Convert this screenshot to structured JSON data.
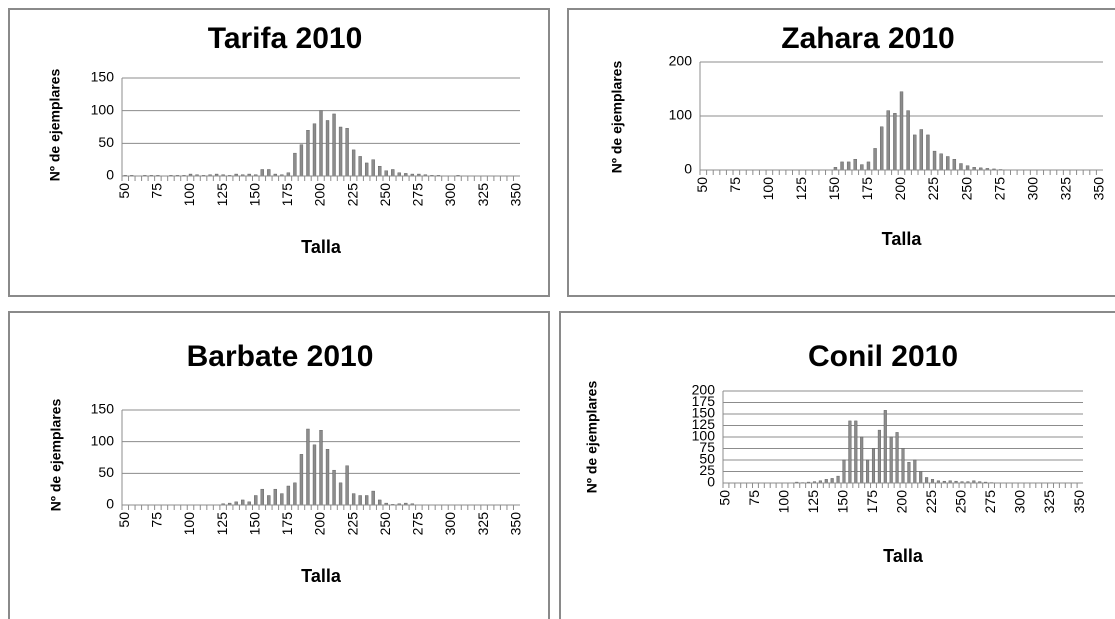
{
  "chart_data": [
    {
      "type": "bar",
      "title": "Tarifa 2010",
      "xlabel": "Talla",
      "ylabel": "Nº de ejemplares",
      "color": "#8c8c8c",
      "grid": true,
      "categories": [
        "50",
        null,
        null,
        null,
        null,
        "75",
        null,
        null,
        null,
        null,
        "100",
        null,
        null,
        null,
        null,
        "125",
        null,
        null,
        null,
        null,
        "150",
        null,
        null,
        null,
        null,
        "175",
        null,
        null,
        null,
        null,
        "200",
        null,
        null,
        null,
        null,
        "225",
        null,
        null,
        null,
        null,
        "250",
        null,
        null,
        null,
        null,
        "275",
        null,
        null,
        null,
        null,
        "300",
        null,
        null,
        null,
        null,
        "325",
        null,
        null,
        null,
        null,
        "350"
      ],
      "values": [
        1,
        1,
        0,
        1,
        1,
        1,
        0,
        1,
        1,
        1,
        3,
        2,
        1,
        2,
        3,
        2,
        1,
        3,
        2,
        3,
        2,
        10,
        10,
        3,
        2,
        5,
        35,
        48,
        70,
        80,
        100,
        85,
        95,
        75,
        73,
        40,
        30,
        20,
        25,
        15,
        8,
        10,
        5,
        4,
        3,
        3,
        2,
        1,
        1,
        0,
        0,
        1,
        0,
        0,
        0,
        0,
        0,
        0,
        0,
        0,
        0
      ],
      "ylim": [
        0,
        150
      ],
      "yticks": [
        0,
        50,
        100,
        150
      ]
    },
    {
      "type": "bar",
      "title": "Zahara 2010",
      "xlabel": "Talla",
      "ylabel": "Nº de ejemplares",
      "color": "#8c8c8c",
      "grid": true,
      "categories": [
        "50",
        null,
        null,
        null,
        null,
        "75",
        null,
        null,
        null,
        null,
        "100",
        null,
        null,
        null,
        null,
        "125",
        null,
        null,
        null,
        null,
        "150",
        null,
        null,
        null,
        null,
        "175",
        null,
        null,
        null,
        null,
        "200",
        null,
        null,
        null,
        null,
        "225",
        null,
        null,
        null,
        null,
        "250",
        null,
        null,
        null,
        null,
        "275",
        null,
        null,
        null,
        null,
        "300",
        null,
        null,
        null,
        null,
        "325",
        null,
        null,
        null,
        null,
        "350"
      ],
      "values": [
        0,
        0,
        0,
        0,
        0,
        0,
        0,
        0,
        0,
        0,
        0,
        0,
        0,
        0,
        0,
        0,
        0,
        0,
        0,
        0,
        5,
        15,
        15,
        20,
        10,
        15,
        40,
        80,
        110,
        105,
        145,
        110,
        65,
        75,
        65,
        35,
        30,
        25,
        20,
        12,
        8,
        5,
        4,
        3,
        2,
        1,
        0,
        0,
        0,
        0,
        0,
        0,
        0,
        0,
        0,
        0,
        0,
        0,
        0,
        0,
        0
      ],
      "ylim": [
        0,
        200
      ],
      "yticks": [
        0,
        100,
        200
      ]
    },
    {
      "type": "bar",
      "title": "Barbate 2010",
      "xlabel": "Talla",
      "ylabel": "Nº de ejemplares",
      "color": "#8c8c8c",
      "grid": true,
      "categories": [
        "50",
        null,
        null,
        null,
        null,
        "75",
        null,
        null,
        null,
        null,
        "100",
        null,
        null,
        null,
        null,
        "125",
        null,
        null,
        null,
        null,
        "150",
        null,
        null,
        null,
        null,
        "175",
        null,
        null,
        null,
        null,
        "200",
        null,
        null,
        null,
        null,
        "225",
        null,
        null,
        null,
        null,
        "250",
        null,
        null,
        null,
        null,
        "275",
        null,
        null,
        null,
        null,
        "300",
        null,
        null,
        null,
        null,
        "325",
        null,
        null,
        null,
        null,
        "350"
      ],
      "values": [
        0,
        0,
        0,
        0,
        0,
        0,
        0,
        0,
        0,
        0,
        0,
        0,
        0,
        0,
        0,
        2,
        3,
        5,
        8,
        5,
        15,
        25,
        15,
        25,
        18,
        30,
        35,
        80,
        120,
        95,
        118,
        88,
        55,
        35,
        62,
        18,
        15,
        15,
        22,
        8,
        3,
        1,
        2,
        3,
        2,
        0,
        0,
        0,
        0,
        0,
        0,
        0,
        0,
        0,
        0,
        0,
        0,
        0,
        0,
        0,
        0
      ],
      "ylim": [
        0,
        150
      ],
      "yticks": [
        0,
        50,
        100,
        150
      ]
    },
    {
      "type": "bar",
      "title": "Conil 2010",
      "xlabel": "Talla",
      "ylabel": "Nº de ejemplares",
      "color": "#8c8c8c",
      "grid": true,
      "categories": [
        "50",
        null,
        null,
        null,
        null,
        "75",
        null,
        null,
        null,
        null,
        "100",
        null,
        null,
        null,
        null,
        "125",
        null,
        null,
        null,
        null,
        "150",
        null,
        null,
        null,
        null,
        "175",
        null,
        null,
        null,
        null,
        "200",
        null,
        null,
        null,
        null,
        "225",
        null,
        null,
        null,
        null,
        "250",
        null,
        null,
        null,
        null,
        "275",
        null,
        null,
        null,
        null,
        "300",
        null,
        null,
        null,
        null,
        "325",
        null,
        null,
        null,
        null,
        "350"
      ],
      "values": [
        0,
        0,
        0,
        0,
        0,
        0,
        0,
        0,
        0,
        0,
        0,
        0,
        2,
        1,
        2,
        3,
        5,
        8,
        10,
        15,
        50,
        135,
        135,
        100,
        50,
        75,
        115,
        158,
        100,
        110,
        75,
        45,
        50,
        25,
        12,
        8,
        5,
        4,
        5,
        4,
        3,
        3,
        5,
        3,
        2,
        1,
        0,
        0,
        0,
        0,
        0,
        0,
        0,
        0,
        0,
        0,
        0,
        0,
        0,
        0,
        0
      ],
      "ylim": [
        0,
        200
      ],
      "yticks": [
        0,
        25,
        50,
        75,
        100,
        125,
        150,
        175,
        200
      ]
    }
  ]
}
